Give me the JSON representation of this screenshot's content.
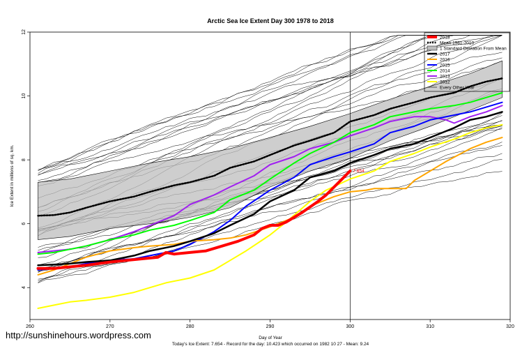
{
  "chart_data": {
    "type": "line",
    "title": "Arctic Sea Ice Extent Day 300 1978 to 2018",
    "xlabel": "Day of Year",
    "ylabel": "Ice Extent in millions of sq. km.",
    "xlim": [
      260,
      320
    ],
    "ylim": [
      3,
      12
    ],
    "xticks": [
      260,
      270,
      280,
      290,
      300,
      310,
      320
    ],
    "yticks": [
      4,
      6,
      8,
      10,
      12
    ],
    "grid": false,
    "legend_position": "top-right",
    "vline_x": 300,
    "annotation": {
      "x": 300,
      "y": 7.654,
      "text": "7.654"
    },
    "footer": "Today's Ice Extent: 7.654  - Record for the day: 10.423 which occurred on 1982 10 27  - Mean: 9.24",
    "source": "http://sunshinehours.wordpress.com",
    "legend": [
      {
        "label": "2018",
        "color": "#ff0000",
        "style": "solid",
        "width": 4
      },
      {
        "label": "Mean 1981-2010",
        "color": "#000000",
        "style": "dotted",
        "width": 2.5
      },
      {
        "label": "1 Standard Deviation From Mean",
        "color": "#bebebe",
        "style": "box"
      },
      {
        "label": "2017",
        "color": "#000000",
        "style": "solid",
        "width": 2.5
      },
      {
        "label": "2016",
        "color": "#ffa500",
        "style": "solid",
        "width": 2
      },
      {
        "label": "2015",
        "color": "#0000ff",
        "style": "solid",
        "width": 2
      },
      {
        "label": "2014",
        "color": "#00ff00",
        "style": "solid",
        "width": 2
      },
      {
        "label": "2013",
        "color": "#a020f0",
        "style": "solid",
        "width": 2
      },
      {
        "label": "2012",
        "color": "#ffff00",
        "style": "solid",
        "width": 2
      },
      {
        "label": "Every Other Year",
        "color": "#000000",
        "style": "solid",
        "width": 0.6
      }
    ],
    "band": {
      "x": [
        261,
        265,
        270,
        275,
        280,
        285,
        290,
        295,
        300,
        305,
        310,
        315,
        319
      ],
      "upper": [
        7.3,
        7.4,
        7.65,
        7.9,
        8.1,
        8.35,
        8.7,
        9.05,
        9.45,
        9.9,
        10.3,
        10.7,
        11.1
      ],
      "lower": [
        5.5,
        5.6,
        5.85,
        6.0,
        6.2,
        6.5,
        7.15,
        7.65,
        8.05,
        8.6,
        9.05,
        9.55,
        9.95
      ]
    },
    "series": [
      {
        "name": "Mean 1981-2010",
        "color": "#000000",
        "width": 2.5,
        "dash": "2,2",
        "x": [
          261,
          263,
          265,
          267,
          270,
          273,
          275,
          278,
          280,
          283,
          285,
          288,
          290,
          293,
          295,
          298,
          300,
          303,
          305,
          308,
          310,
          313,
          315,
          317,
          319
        ],
        "y": [
          6.25,
          6.27,
          6.35,
          6.5,
          6.7,
          6.85,
          7.0,
          7.2,
          7.3,
          7.5,
          7.75,
          7.95,
          8.15,
          8.45,
          8.6,
          8.85,
          9.2,
          9.4,
          9.6,
          9.8,
          9.95,
          10.1,
          10.3,
          10.45,
          10.55
        ]
      },
      {
        "name": "2012",
        "color": "#ffff00",
        "width": 2,
        "x": [
          261,
          263,
          265,
          267,
          270,
          273,
          275,
          277,
          280,
          283,
          285,
          287,
          290,
          292,
          295,
          297,
          300,
          303,
          305,
          308,
          310,
          313,
          315,
          317,
          319
        ],
        "y": [
          3.35,
          3.45,
          3.55,
          3.6,
          3.7,
          3.85,
          4.0,
          4.15,
          4.3,
          4.55,
          4.85,
          5.15,
          5.65,
          6.05,
          6.7,
          7.05,
          7.4,
          7.65,
          7.95,
          8.2,
          8.4,
          8.65,
          8.85,
          9.0,
          9.1
        ]
      },
      {
        "name": "2013",
        "color": "#a020f0",
        "width": 2,
        "x": [
          261,
          263,
          265,
          267,
          270,
          273,
          275,
          278,
          280,
          283,
          285,
          288,
          290,
          293,
          295,
          298,
          300,
          303,
          305,
          308,
          310,
          312,
          313,
          315,
          317,
          319
        ],
        "y": [
          5.1,
          5.15,
          5.2,
          5.3,
          5.5,
          5.75,
          5.95,
          6.25,
          6.6,
          6.9,
          7.15,
          7.5,
          7.85,
          8.1,
          8.35,
          8.55,
          8.75,
          9.0,
          9.2,
          9.35,
          9.35,
          9.25,
          9.15,
          9.35,
          9.5,
          9.7
        ]
      },
      {
        "name": "2014",
        "color": "#00ff00",
        "width": 2,
        "x": [
          261,
          263,
          265,
          267,
          270,
          273,
          275,
          278,
          280,
          283,
          285,
          288,
          290,
          293,
          295,
          298,
          300,
          303,
          305,
          308,
          310,
          313,
          315,
          317,
          319
        ],
        "y": [
          5.05,
          5.1,
          5.2,
          5.3,
          5.5,
          5.65,
          5.8,
          5.95,
          6.1,
          6.35,
          6.75,
          7.05,
          7.4,
          7.9,
          8.2,
          8.55,
          8.85,
          9.1,
          9.35,
          9.5,
          9.6,
          9.7,
          9.8,
          9.95,
          10.1
        ]
      },
      {
        "name": "2015",
        "color": "#0000ff",
        "width": 2,
        "x": [
          261,
          263,
          265,
          267,
          270,
          273,
          275,
          278,
          280,
          283,
          285,
          287,
          290,
          293,
          295,
          298,
          300,
          303,
          305,
          308,
          310,
          313,
          315,
          317,
          319
        ],
        "y": [
          4.55,
          4.6,
          4.65,
          4.75,
          4.85,
          4.9,
          5.0,
          5.15,
          5.35,
          5.75,
          6.1,
          6.55,
          7.05,
          7.45,
          7.85,
          8.1,
          8.25,
          8.5,
          8.85,
          9.05,
          9.25,
          9.4,
          9.5,
          9.65,
          9.8
        ]
      },
      {
        "name": "2016",
        "color": "#ffa500",
        "width": 2,
        "x": [
          261,
          263,
          265,
          267,
          270,
          273,
          275,
          278,
          280,
          283,
          285,
          287,
          290,
          293,
          295,
          298,
          300,
          302,
          303,
          305,
          307,
          308,
          310,
          312,
          315,
          317,
          319
        ],
        "y": [
          4.4,
          4.55,
          4.75,
          4.95,
          5.15,
          5.25,
          5.3,
          5.35,
          5.45,
          5.5,
          5.55,
          5.65,
          5.9,
          6.2,
          6.55,
          6.85,
          7.0,
          7.05,
          7.1,
          7.1,
          7.1,
          7.35,
          7.65,
          7.95,
          8.35,
          8.55,
          8.7
        ]
      },
      {
        "name": "2017",
        "color": "#000000",
        "width": 2.5,
        "x": [
          261,
          263,
          265,
          267,
          270,
          273,
          275,
          278,
          280,
          283,
          285,
          288,
          290,
          293,
          295,
          298,
          300,
          303,
          305,
          308,
          310,
          313,
          315,
          317,
          319
        ],
        "y": [
          4.7,
          4.72,
          4.75,
          4.8,
          4.85,
          5.0,
          5.15,
          5.3,
          5.45,
          5.7,
          5.95,
          6.3,
          6.7,
          7.05,
          7.45,
          7.65,
          7.9,
          8.15,
          8.35,
          8.5,
          8.7,
          9.0,
          9.25,
          9.35,
          9.5
        ]
      },
      {
        "name": "2018",
        "color": "#ff0000",
        "width": 4,
        "x": [
          261,
          263,
          265,
          267,
          270,
          272,
          274,
          276,
          277,
          278,
          280,
          282,
          284,
          286,
          288,
          289,
          290,
          291,
          292,
          294,
          296,
          297,
          298,
          299,
          300
        ],
        "y": [
          4.6,
          4.6,
          4.65,
          4.7,
          4.8,
          4.85,
          4.9,
          4.95,
          5.1,
          5.05,
          5.1,
          5.15,
          5.3,
          5.45,
          5.65,
          5.85,
          5.95,
          5.95,
          6.05,
          6.35,
          6.7,
          6.9,
          7.15,
          7.4,
          7.654
        ]
      }
    ]
  }
}
